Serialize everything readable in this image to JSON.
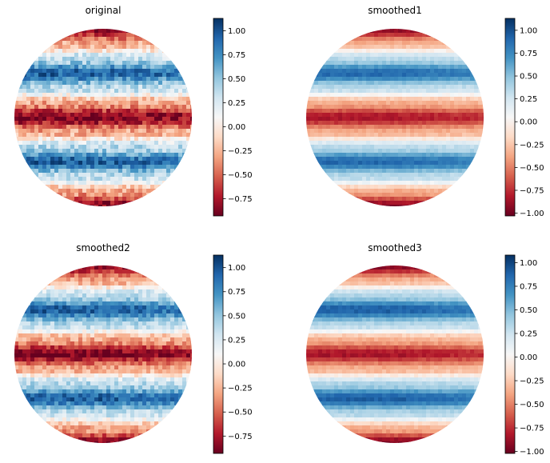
{
  "chart_data": [
    {
      "type": "heatmap",
      "title": "original",
      "shape": "disk",
      "pattern": "horizontal-bands",
      "band_values_top_to_bottom": [
        -0.85,
        -0.3,
        0.35,
        0.95,
        0.4,
        -0.3,
        -0.9,
        -0.3,
        0.4,
        0.95,
        0.35,
        -0.3,
        -0.85
      ],
      "noise": 0.18,
      "colormap": "RdBu",
      "colorbar": {
        "vmin": -0.93,
        "vmax": 1.13,
        "ticks": [
          1.0,
          0.75,
          0.5,
          0.25,
          0.0,
          -0.25,
          -0.5,
          -0.75
        ],
        "tick_labels": [
          "1.00",
          "0.75",
          "0.50",
          "0.25",
          "0.00",
          "−0.25",
          "−0.50",
          "−0.75"
        ]
      }
    },
    {
      "type": "heatmap",
      "title": "smoothed1",
      "shape": "disk",
      "pattern": "horizontal-bands",
      "band_values_top_to_bottom": [
        -0.95,
        -0.35,
        0.35,
        0.9,
        0.35,
        -0.35,
        -0.85,
        -0.35,
        0.35,
        0.9,
        0.35,
        -0.35,
        -0.95
      ],
      "noise": 0.05,
      "colormap": "RdBu",
      "colorbar": {
        "vmin": -1.03,
        "vmax": 1.13,
        "ticks": [
          1.0,
          0.75,
          0.5,
          0.25,
          0.0,
          -0.25,
          -0.5,
          -0.75,
          -1.0
        ],
        "tick_labels": [
          "1.00",
          "0.75",
          "0.50",
          "0.25",
          "0.00",
          "−0.25",
          "−0.50",
          "−0.75",
          "−1.00"
        ]
      }
    },
    {
      "type": "heatmap",
      "title": "smoothed2",
      "shape": "disk",
      "pattern": "horizontal-bands",
      "band_values_top_to_bottom": [
        -0.85,
        -0.3,
        0.35,
        0.95,
        0.4,
        -0.3,
        -0.9,
        -0.3,
        0.4,
        0.95,
        0.35,
        -0.3,
        -0.85
      ],
      "noise": 0.15,
      "colormap": "RdBu",
      "colorbar": {
        "vmin": -0.93,
        "vmax": 1.13,
        "ticks": [
          1.0,
          0.75,
          0.5,
          0.25,
          0.0,
          -0.25,
          -0.5,
          -0.75
        ],
        "tick_labels": [
          "1.00",
          "0.75",
          "0.50",
          "0.25",
          "0.00",
          "−0.25",
          "−0.50",
          "−0.75"
        ]
      }
    },
    {
      "type": "heatmap",
      "title": "smoothed3",
      "shape": "disk",
      "pattern": "horizontal-bands",
      "band_values_top_to_bottom": [
        -0.95,
        -0.35,
        0.35,
        0.9,
        0.35,
        -0.35,
        -0.85,
        -0.35,
        0.35,
        0.9,
        0.35,
        -0.35,
        -0.95
      ],
      "noise": 0.05,
      "colormap": "RdBu",
      "colorbar": {
        "vmin": -1.02,
        "vmax": 1.08,
        "ticks": [
          1.0,
          0.75,
          0.5,
          0.25,
          0.0,
          -0.25,
          -0.5,
          -0.75,
          -1.0
        ],
        "tick_labels": [
          "1.00",
          "0.75",
          "0.50",
          "0.25",
          "0.00",
          "−0.25",
          "−0.50",
          "−0.75",
          "−1.00"
        ]
      }
    }
  ]
}
